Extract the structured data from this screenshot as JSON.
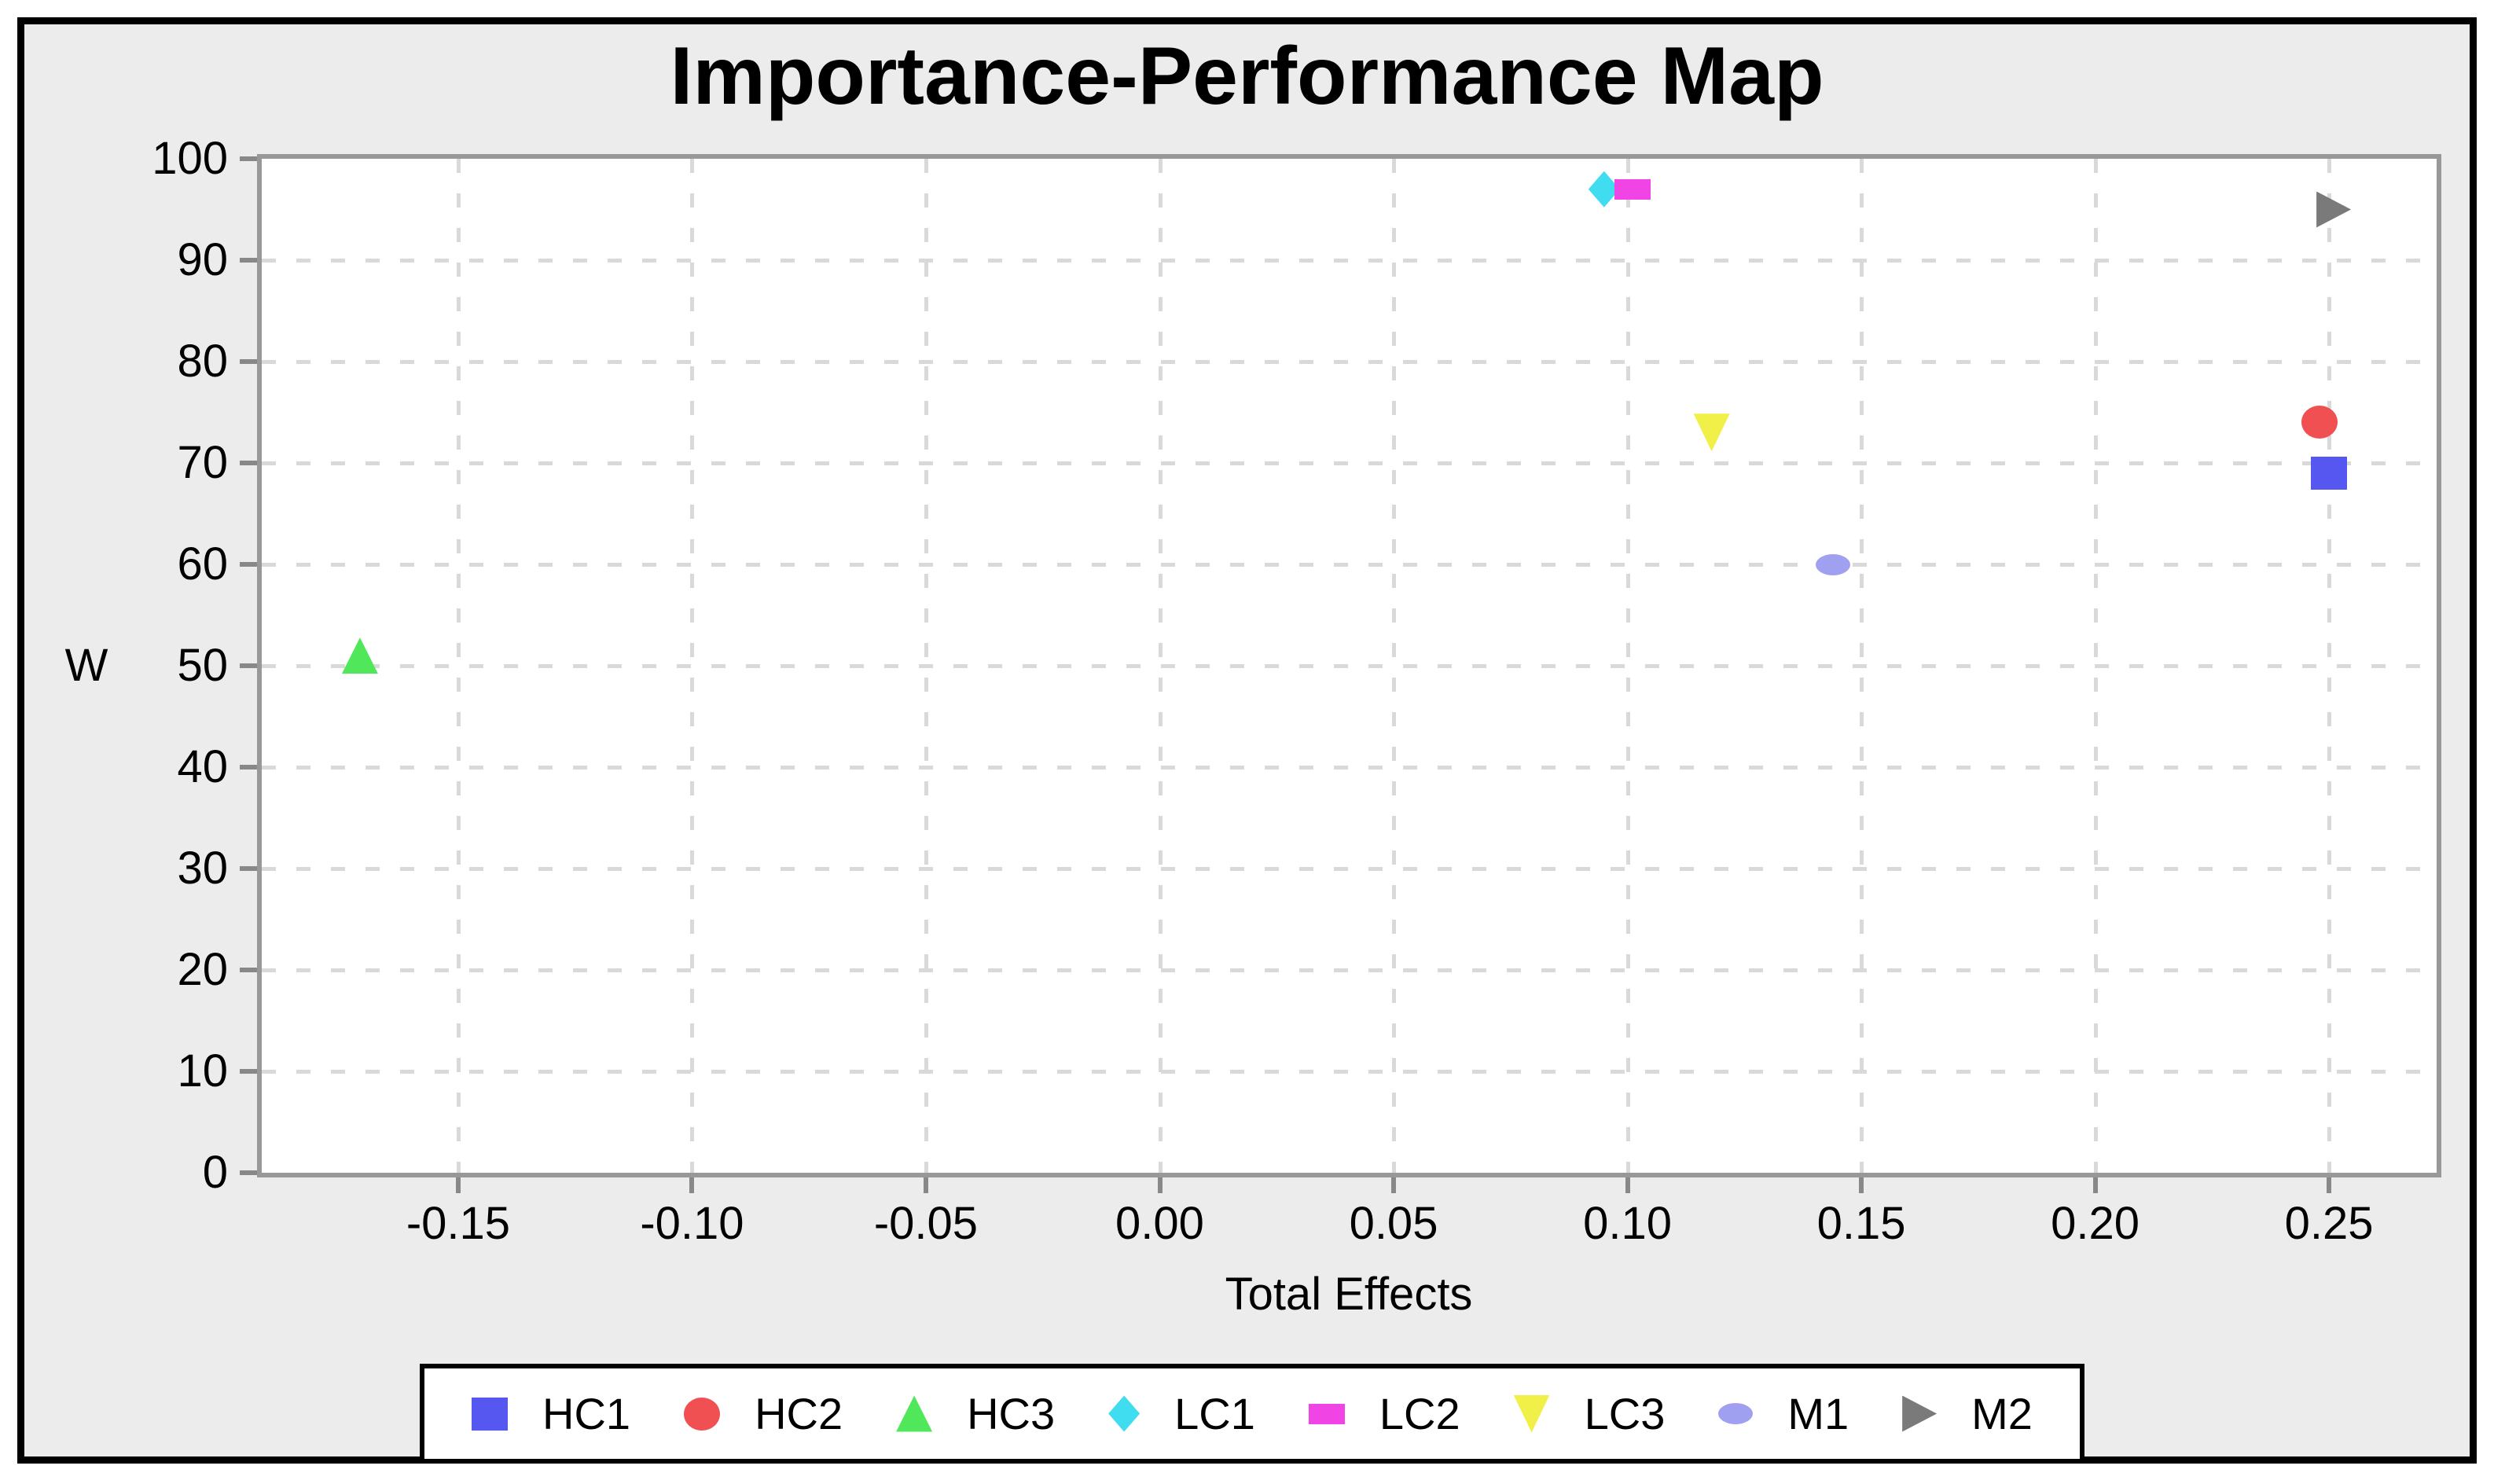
{
  "figure": {
    "background_color": "#ECECEC",
    "plot_background_color": "#FFFFFF",
    "frame_color": "#989898",
    "gridline_color": "#D9D9D9",
    "outer_border_color": "#000000"
  },
  "chart_data": {
    "type": "scatter",
    "title": "Importance-Performance Map",
    "xlabel": "Total Effects",
    "ylabel": "W",
    "xlim": [
      -0.192,
      0.273
    ],
    "ylim": [
      0,
      100
    ],
    "x_ticks": [
      -0.15,
      -0.1,
      -0.05,
      0.0,
      0.05,
      0.1,
      0.15,
      0.2,
      0.25
    ],
    "x_tick_labels": [
      "-0.15",
      "-0.10",
      "-0.05",
      "0.00",
      "0.05",
      "0.10",
      "0.15",
      "0.20",
      "0.25"
    ],
    "y_ticks": [
      0,
      10,
      20,
      30,
      40,
      50,
      60,
      70,
      80,
      90,
      100
    ],
    "y_tick_labels": [
      "0",
      "10",
      "20",
      "30",
      "40",
      "50",
      "60",
      "70",
      "80",
      "90",
      "100"
    ],
    "grid": true,
    "legend_position": "bottom",
    "series": [
      {
        "name": "HC1",
        "marker": "square",
        "color": "#5656F0",
        "x": 0.25,
        "y": 69
      },
      {
        "name": "HC2",
        "marker": "circle",
        "color": "#F05052",
        "x": 0.248,
        "y": 74
      },
      {
        "name": "HC3",
        "marker": "triangle-up",
        "color": "#50E85A",
        "x": -0.171,
        "y": 51
      },
      {
        "name": "LC1",
        "marker": "diamond",
        "color": "#40DCF0",
        "x": 0.095,
        "y": 97
      },
      {
        "name": "LC2",
        "marker": "rect",
        "color": "#F044E4",
        "x": 0.101,
        "y": 97
      },
      {
        "name": "LC3",
        "marker": "triangle-down",
        "color": "#F0F048",
        "x": 0.118,
        "y": 73
      },
      {
        "name": "M1",
        "marker": "ellipse",
        "color": "#A0A0F0",
        "x": 0.144,
        "y": 60
      },
      {
        "name": "M2",
        "marker": "triangle-right",
        "color": "#7A7A7A",
        "x": 0.251,
        "y": 95
      }
    ]
  }
}
